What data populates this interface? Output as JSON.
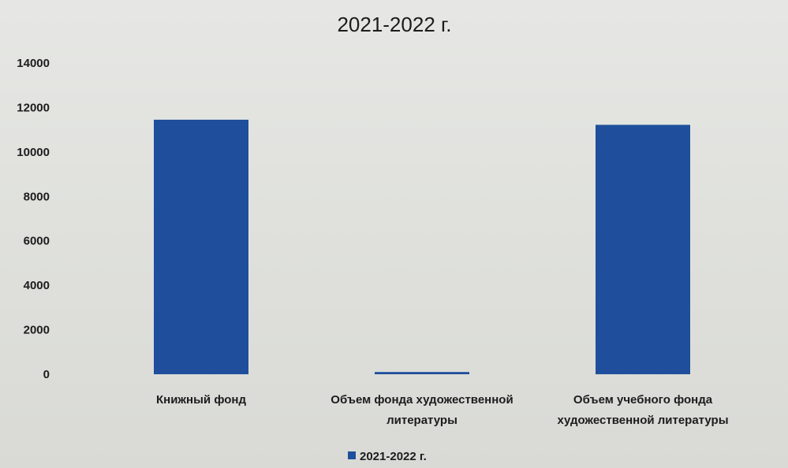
{
  "chart_data": {
    "type": "bar",
    "title": "2021-2022 г.",
    "xlabel": "",
    "ylabel": "",
    "categories": [
      [
        "Книжный фонд"
      ],
      [
        "Объем фонда художественной",
        "литературы"
      ],
      [
        "Объем учебного фонда",
        "художественной литературы"
      ]
    ],
    "series": [
      {
        "name": "2021-2022 г.",
        "values": [
          11450,
          100,
          11220
        ]
      }
    ],
    "ylim": [
      0,
      14000
    ],
    "yticks": [
      0,
      2000,
      4000,
      6000,
      8000,
      10000,
      12000,
      14000
    ],
    "grid": false,
    "legend_position": "bottom",
    "colors": {
      "bar": "#1f4f9c",
      "text": "#1c1c1c"
    }
  }
}
